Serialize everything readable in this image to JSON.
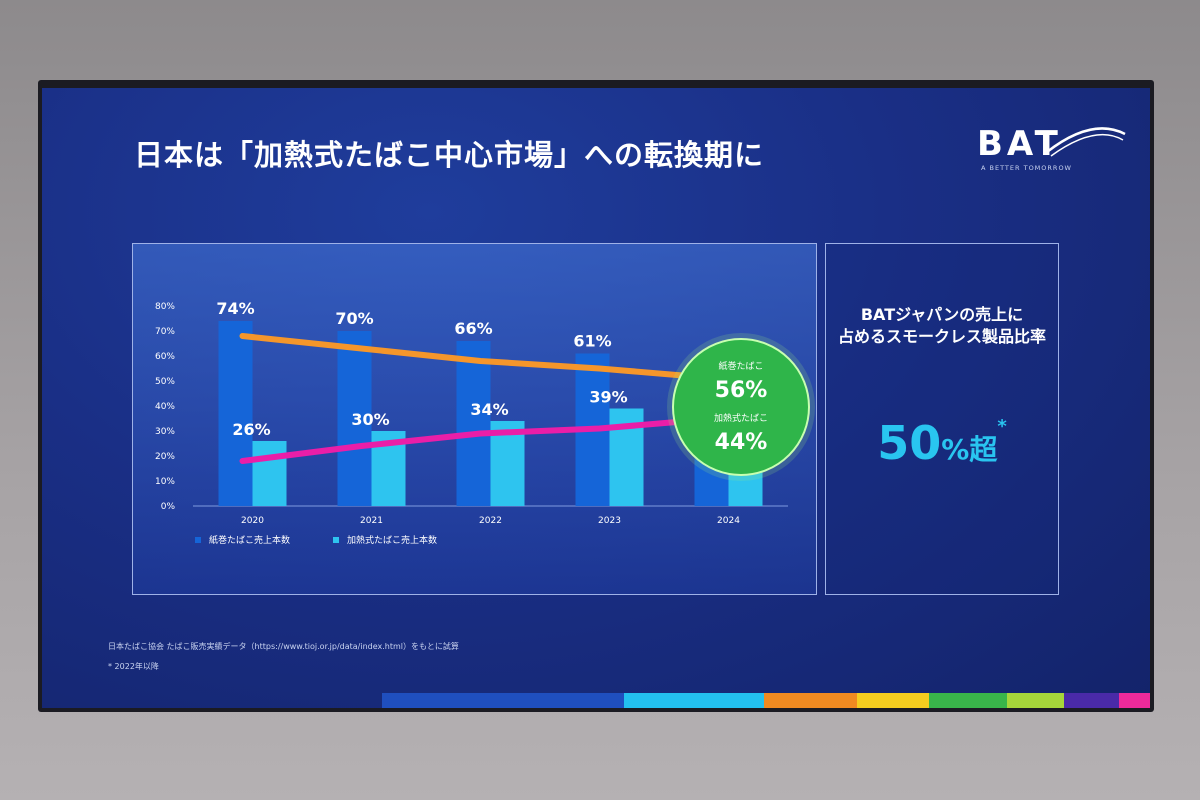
{
  "slide": {
    "title": "日本は「加熱式たばこ中心市場」への転換期に",
    "logo_text": "BAT",
    "logo_tagline": "A BETTER TOMORROW",
    "side_heading_line1": "BATジャパンの売上に",
    "side_heading_line2": "占めるスモークレス製品比率",
    "side_big_value": "50",
    "side_big_suffix": "%超",
    "side_big_mark": "*",
    "footnote_source": "日本たばこ協会 たばこ販売実績データ（https://www.tioj.or.jp/data/index.html）をもとに試算",
    "footnote_asterisk": "* 2022年以降",
    "callout_label_1": "紙巻たばこ",
    "callout_value_1": "56%",
    "callout_label_2": "加熱式たばこ",
    "callout_value_2": "44%"
  },
  "colors": {
    "bar_cigarette": "#1565d8",
    "bar_heated": "#2ec4ef",
    "line_cigarette": "#f5962b",
    "line_heated": "#ea1ea8",
    "callout_fill": "#2fb54a",
    "accent_big": "#29c5f0"
  },
  "bottom_strip_colors": [
    "#1f4fbf",
    "#23c0ef",
    "#f08a21",
    "#f5cd1f",
    "#39b54a",
    "#a6d63a",
    "#4a2aa8",
    "#ee2a9b"
  ],
  "chart_data": {
    "type": "bar",
    "categories": [
      "2020",
      "2021",
      "2022",
      "2023",
      "2024"
    ],
    "ylim": [
      0,
      80
    ],
    "yticks": [
      "0%",
      "10%",
      "20%",
      "30%",
      "40%",
      "50%",
      "60%",
      "70%",
      "80%"
    ],
    "series": [
      {
        "name": "紙巻たばこ売上本数",
        "values": [
          74,
          70,
          66,
          61,
          56
        ],
        "labels": [
          "74%",
          "70%",
          "66%",
          "61%",
          ""
        ]
      },
      {
        "name": "加熱式たばこ売上本数",
        "values": [
          26,
          30,
          34,
          39,
          44
        ],
        "labels": [
          "26%",
          "30%",
          "34%",
          "39%",
          ""
        ]
      }
    ],
    "lines": [
      {
        "series": "紙巻たばこ売上本数",
        "values": [
          68,
          63,
          58,
          55,
          51
        ]
      },
      {
        "series": "加熱式たばこ売上本数",
        "values": [
          18,
          24,
          29,
          31,
          35
        ]
      }
    ],
    "legend_position": "bottom-left"
  }
}
